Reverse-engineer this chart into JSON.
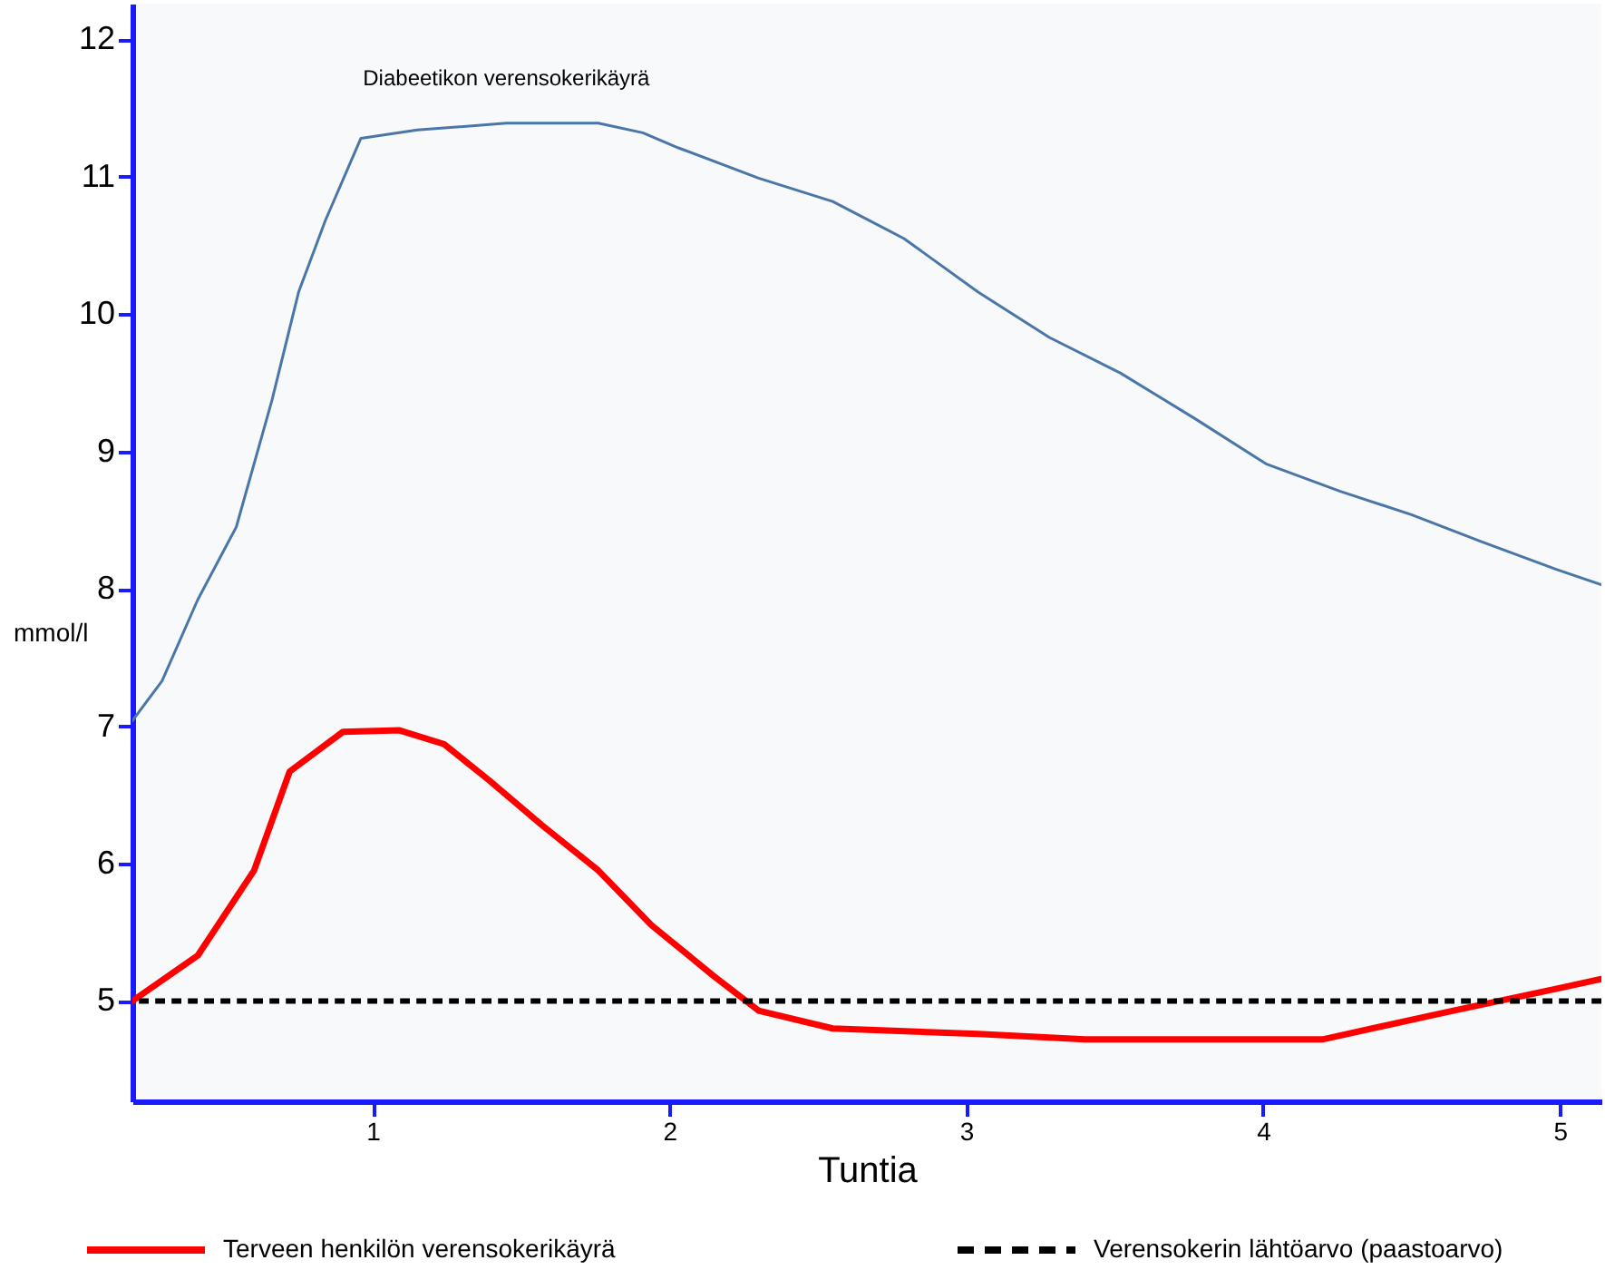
{
  "chart_data": {
    "type": "line",
    "xlabel": "Tuntia",
    "ylabel": "mmol/l",
    "xlim": [
      0.19,
      5.14
    ],
    "xticks": [
      1,
      2,
      3,
      4,
      5
    ],
    "ylim": [
      4.27,
      12.26
    ],
    "yticks": [
      5,
      6,
      7,
      8,
      9,
      10,
      11,
      12
    ],
    "grid": false,
    "legend": "bottom",
    "marker": "none",
    "line_style": "solid",
    "series": [
      {
        "name": "Diabeetikon verensokerikäyrä",
        "color": "#4a76a8",
        "x": [
          0.19,
          0.29,
          0.41,
          0.54,
          0.66,
          0.75,
          0.84,
          0.96,
          1.15,
          1.45,
          1.76,
          1.91,
          2.03,
          2.3,
          2.55,
          2.79,
          3.04,
          3.28,
          3.52,
          3.77,
          4.01,
          4.26,
          4.5,
          4.74,
          4.99,
          5.14
        ],
        "values": [
          7.04,
          7.33,
          7.92,
          8.45,
          9.37,
          10.16,
          10.68,
          11.28,
          11.34,
          11.39,
          11.39,
          11.32,
          11.21,
          10.99,
          10.82,
          10.55,
          10.16,
          9.83,
          9.57,
          9.24,
          8.91,
          8.71,
          8.54,
          8.34,
          8.14,
          8.03
        ]
      },
      {
        "name": "Terveen henkilön verensokerikäyrä",
        "color": "#ff0000",
        "x": [
          0.19,
          0.41,
          0.6,
          0.72,
          0.9,
          1.09,
          1.24,
          1.39,
          1.57,
          1.76,
          1.94,
          2.15,
          2.3,
          2.55,
          3.04,
          3.4,
          4.2,
          4.62,
          4.99,
          5.14
        ],
        "values": [
          5.0,
          5.33,
          5.95,
          6.67,
          6.96,
          6.97,
          6.87,
          6.61,
          6.28,
          5.95,
          5.55,
          5.18,
          4.93,
          4.8,
          4.76,
          4.72,
          4.72,
          4.92,
          5.09,
          5.16
        ]
      }
    ],
    "ref_lines": [
      {
        "axis": "y",
        "value": 5,
        "label": "Verensokerin lähtöarvo (paastoarvo)",
        "color": "#000000",
        "line_style": "dashed"
      }
    ]
  }
}
